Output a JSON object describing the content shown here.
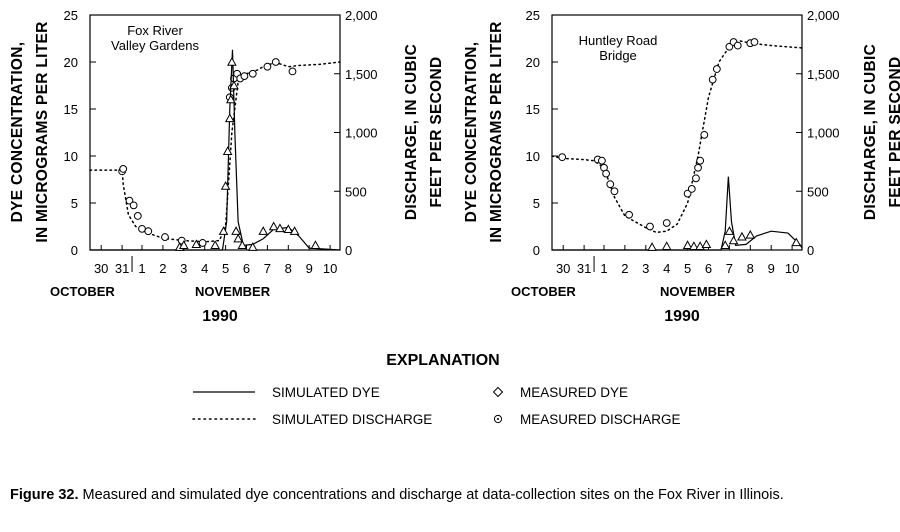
{
  "chart_data": [
    {
      "type": "line",
      "panel": "left",
      "site_label_lines": [
        "Fox River",
        "Valley Gardens"
      ],
      "x_ticks": [
        "30",
        "31",
        "1",
        "2",
        "3",
        "4",
        "5",
        "6",
        "7",
        "8",
        "9",
        "10"
      ],
      "x_month_left": "OCTOBER",
      "x_month_right": "NOVEMBER",
      "x_year": "1990",
      "ylabel_left": [
        "DYE CONCENTRATION,",
        "IN MICROGRAMS PER LITER"
      ],
      "ylabel_right": [
        "DISCHARGE, IN CUBIC",
        "FEET PER SECOND"
      ],
      "y_left_ticks": [
        "0",
        "5",
        "10",
        "15",
        "20",
        "25"
      ],
      "y_right_ticks": [
        "0",
        "500",
        "1,000",
        "1,500",
        "2,000"
      ],
      "ylim_left": [
        0,
        25
      ],
      "ylim_right": [
        0,
        2000
      ],
      "xlim": [
        -1.7,
        11.2
      ],
      "series": [
        {
          "name": "SIMULATED DISCHARGE",
          "axis": "right",
          "points": [
            [
              -1.7,
              680
            ],
            [
              -0.9,
              680
            ],
            [
              0.05,
              680
            ],
            [
              0.1,
              560
            ],
            [
              0.35,
              300
            ],
            [
              0.7,
              200
            ],
            [
              1.2,
              150
            ],
            [
              2.0,
              100
            ],
            [
              3.0,
              80
            ],
            [
              4.0,
              70
            ],
            [
              4.7,
              80
            ],
            [
              5.0,
              200
            ],
            [
              5.3,
              1000
            ],
            [
              5.6,
              1430
            ],
            [
              6.0,
              1500
            ],
            [
              6.5,
              1530
            ],
            [
              7.0,
              1580
            ],
            [
              7.5,
              1590
            ],
            [
              8.0,
              1560
            ],
            [
              8.5,
              1570
            ],
            [
              9.5,
              1580
            ],
            [
              11.2,
              1600
            ]
          ]
        },
        {
          "name": "MEASURED DISCHARGE",
          "axis": "right",
          "points": [
            [
              0.05,
              670
            ],
            [
              0.1,
              690
            ],
            [
              0.4,
              420
            ],
            [
              0.6,
              380
            ],
            [
              0.8,
              290
            ],
            [
              1.0,
              180
            ],
            [
              1.3,
              160
            ],
            [
              2.1,
              110
            ],
            [
              2.9,
              80
            ],
            [
              3.9,
              60
            ],
            [
              5.2,
              1300
            ],
            [
              5.3,
              1380
            ],
            [
              5.4,
              1460
            ],
            [
              5.55,
              1500
            ],
            [
              5.7,
              1460
            ],
            [
              5.9,
              1480
            ],
            [
              6.3,
              1500
            ],
            [
              7.0,
              1560
            ],
            [
              7.4,
              1600
            ],
            [
              8.2,
              1520
            ]
          ]
        },
        {
          "name": "SIMULATED DYE",
          "axis": "left",
          "points": [
            [
              -1.7,
              0
            ],
            [
              4.85,
              0
            ],
            [
              5.05,
              3
            ],
            [
              5.2,
              15
            ],
            [
              5.33,
              21.3
            ],
            [
              5.45,
              12
            ],
            [
              5.6,
              3
            ],
            [
              5.85,
              0.5
            ],
            [
              6.3,
              0.6
            ],
            [
              6.8,
              1.2
            ],
            [
              7.3,
              2.2
            ],
            [
              8.0,
              2.4
            ],
            [
              8.5,
              1.5
            ],
            [
              9.0,
              0.2
            ],
            [
              11.2,
              0
            ]
          ]
        },
        {
          "name": "MEASURED DYE",
          "axis": "left",
          "points": [
            [
              2.8,
              0.3
            ],
            [
              3.0,
              0.5
            ],
            [
              3.6,
              0.6
            ],
            [
              4.5,
              0.5
            ],
            [
              4.9,
              2.0
            ],
            [
              5.0,
              6.8
            ],
            [
              5.1,
              10.5
            ],
            [
              5.2,
              14
            ],
            [
              5.25,
              16
            ],
            [
              5.3,
              20
            ],
            [
              5.4,
              17.5
            ],
            [
              5.5,
              2
            ],
            [
              5.6,
              1.2
            ],
            [
              5.8,
              0.5
            ],
            [
              6.3,
              0.3
            ],
            [
              6.8,
              2
            ],
            [
              7.3,
              2.5
            ],
            [
              7.6,
              2.3
            ],
            [
              8.0,
              2.2
            ],
            [
              8.3,
              2.0
            ],
            [
              9.3,
              0.5
            ]
          ]
        }
      ]
    },
    {
      "type": "line",
      "panel": "right",
      "site_label_lines": [
        "Huntley Road",
        "Bridge"
      ],
      "x_ticks": [
        "30",
        "31",
        "1",
        "2",
        "3",
        "4",
        "5",
        "6",
        "7",
        "8",
        "9",
        "10"
      ],
      "x_month_left": "OCTOBER",
      "x_month_right": "NOVEMBER",
      "x_year": "1990",
      "ylabel_left": [
        "DYE CONCENTRATION,",
        "IN MICROGRAMS PER LITER"
      ],
      "ylabel_right": [
        "DISCHARGE, IN CUBIC",
        "FEET PER SECOND"
      ],
      "y_left_ticks": [
        "0",
        "5",
        "10",
        "15",
        "20",
        "25"
      ],
      "y_right_ticks": [
        "0",
        "500",
        "1,000",
        "1,500",
        "2,000"
      ],
      "ylim_left": [
        0,
        25
      ],
      "ylim_right": [
        0,
        2000
      ],
      "xlim": [
        -2.0,
        11.2
      ],
      "series": [
        {
          "name": "SIMULATED DISCHARGE",
          "axis": "right",
          "points": [
            [
              -2.0,
              800
            ],
            [
              -1.0,
              780
            ],
            [
              0.0,
              770
            ],
            [
              0.5,
              760
            ],
            [
              1.0,
              700
            ],
            [
              1.5,
              450
            ],
            [
              2.0,
              290
            ],
            [
              3.0,
              190
            ],
            [
              3.5,
              150
            ],
            [
              4.0,
              160
            ],
            [
              4.5,
              220
            ],
            [
              5.0,
              400
            ],
            [
              5.5,
              800
            ],
            [
              6.0,
              1300
            ],
            [
              6.5,
              1600
            ],
            [
              7.0,
              1730
            ],
            [
              7.5,
              1780
            ],
            [
              8.0,
              1760
            ],
            [
              9.0,
              1740
            ],
            [
              11.2,
              1720
            ]
          ]
        },
        {
          "name": "MEASURED DISCHARGE",
          "axis": "right",
          "points": [
            [
              -1.0,
              790
            ],
            [
              0.7,
              770
            ],
            [
              0.9,
              760
            ],
            [
              1.0,
              700
            ],
            [
              1.1,
              650
            ],
            [
              1.3,
              560
            ],
            [
              1.5,
              500
            ],
            [
              2.2,
              300
            ],
            [
              3.2,
              200
            ],
            [
              4.0,
              230
            ],
            [
              5.0,
              480
            ],
            [
              5.2,
              520
            ],
            [
              5.4,
              610
            ],
            [
              5.5,
              700
            ],
            [
              5.6,
              760
            ],
            [
              5.8,
              980
            ],
            [
              6.2,
              1450
            ],
            [
              6.4,
              1540
            ],
            [
              7.0,
              1730
            ],
            [
              7.2,
              1770
            ],
            [
              7.4,
              1740
            ],
            [
              8.0,
              1760
            ],
            [
              8.2,
              1770
            ]
          ]
        },
        {
          "name": "SIMULATED DYE",
          "axis": "left",
          "points": [
            [
              -2.0,
              0
            ],
            [
              6.6,
              0
            ],
            [
              6.8,
              2
            ],
            [
              6.95,
              7.8
            ],
            [
              7.1,
              3
            ],
            [
              7.3,
              0.5
            ],
            [
              7.8,
              0.6
            ],
            [
              8.3,
              1.5
            ],
            [
              9.0,
              2.0
            ],
            [
              9.8,
              1.8
            ],
            [
              10.4,
              0.5
            ],
            [
              11.2,
              0.2
            ]
          ]
        },
        {
          "name": "MEASURED DYE",
          "axis": "left",
          "points": [
            [
              3.3,
              0.3
            ],
            [
              4.0,
              0.4
            ],
            [
              5.0,
              0.5
            ],
            [
              5.3,
              0.4
            ],
            [
              5.6,
              0.4
            ],
            [
              5.9,
              0.6
            ],
            [
              6.8,
              0.5
            ],
            [
              7.0,
              2.0
            ],
            [
              7.2,
              1.0
            ],
            [
              7.6,
              1.4
            ],
            [
              8.0,
              1.6
            ],
            [
              10.2,
              0.8
            ]
          ]
        }
      ]
    }
  ],
  "explanation": {
    "title": "EXPLANATION",
    "items": [
      {
        "symbol": "solid-line",
        "label": "SIMULATED DYE"
      },
      {
        "symbol": "dotted-line",
        "label": "SIMULATED DISCHARGE"
      },
      {
        "symbol": "triangle",
        "label": "MEASURED DYE"
      },
      {
        "symbol": "circle",
        "label": "MEASURED DISCHARGE"
      }
    ]
  },
  "caption": {
    "label": "Figure 32.",
    "text": "Measured and simulated dye concentrations and discharge at data-collection sites on the Fox River in Illinois."
  }
}
